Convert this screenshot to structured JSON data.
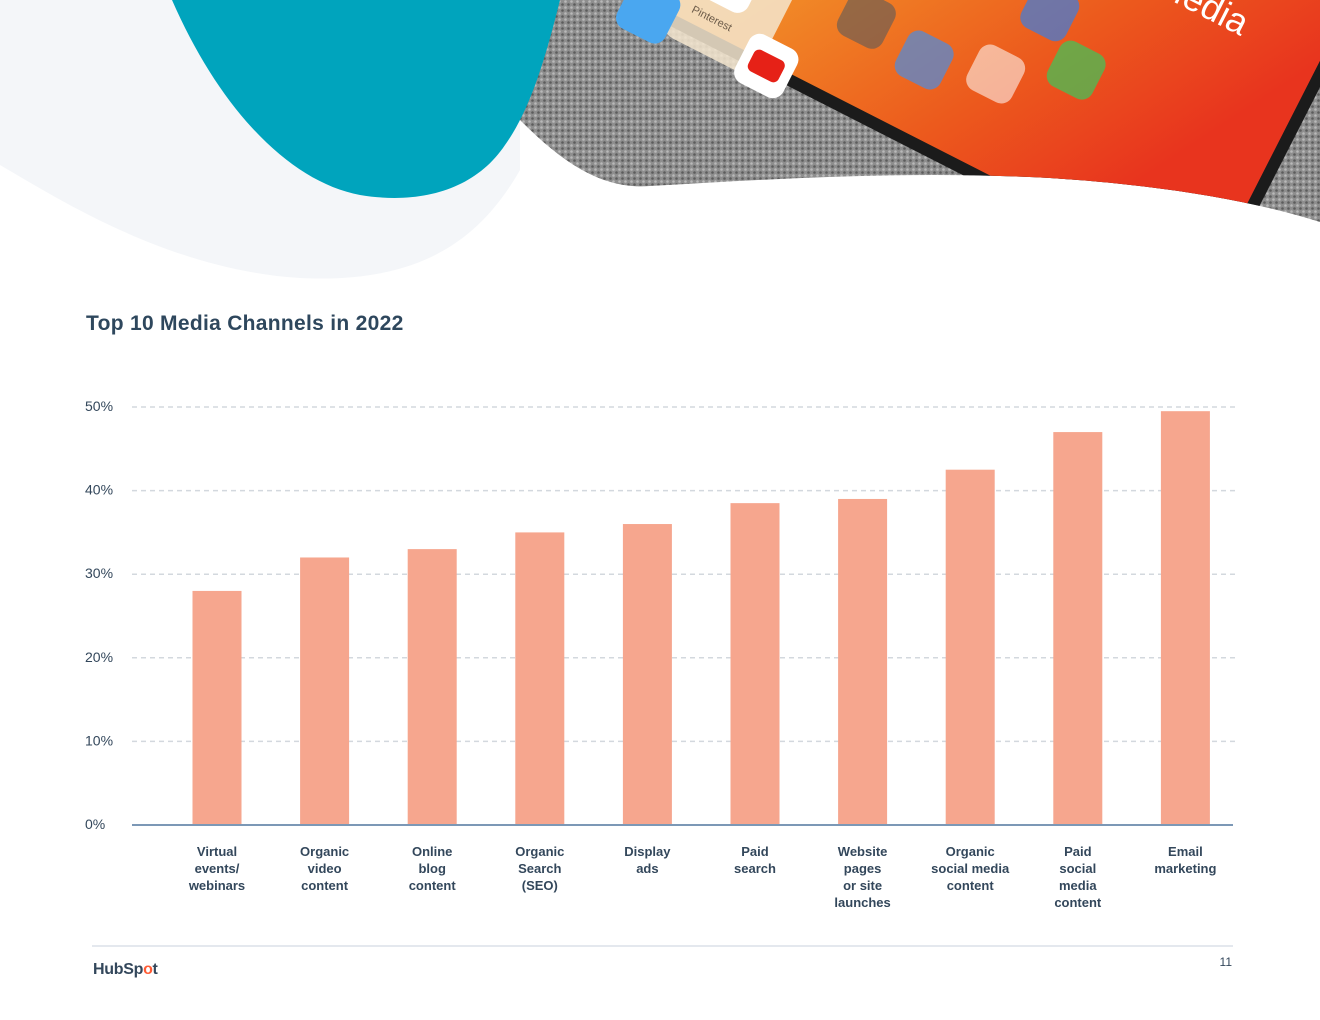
{
  "hero": {
    "screen_title": "Social Media",
    "app_label": "Pinterest",
    "colors": {
      "teal": "#00a4bd",
      "light_blob": "#f4f6f9",
      "fabric": "#8a8a8a",
      "screen_orange": "#f26a1e"
    }
  },
  "title": "Top 10 Media Channels in 2022",
  "chart_data": {
    "type": "bar",
    "title": "Top 10 Media Channels in 2022",
    "xlabel": "",
    "ylabel": "",
    "ylim": [
      0,
      50
    ],
    "yticks": [
      "0%",
      "10%",
      "20%",
      "30%",
      "40%",
      "50%"
    ],
    "grid": true,
    "bar_color": "#f6a68e",
    "categories": [
      "Virtual events/ webinars",
      "Organic video content",
      "Online blog content",
      "Organic Search (SEO)",
      "Display ads",
      "Paid search",
      "Website pages or site launches",
      "Organic social media content",
      "Paid social media content",
      "Email marketing"
    ],
    "category_lines": [
      [
        "Virtual",
        "events/",
        "webinars"
      ],
      [
        "Organic",
        "video",
        "content"
      ],
      [
        "Online",
        "blog",
        "content"
      ],
      [
        "Organic",
        "Search",
        "(SEO)"
      ],
      [
        "Display",
        "ads"
      ],
      [
        "Paid",
        "search"
      ],
      [
        "Website",
        "pages",
        "or site",
        "launches"
      ],
      [
        "Organic",
        "social media",
        "content"
      ],
      [
        "Paid",
        "social",
        "media",
        "content"
      ],
      [
        "Email",
        "marketing"
      ]
    ],
    "values": [
      28,
      32,
      33,
      35,
      36,
      38.5,
      39,
      42.5,
      47,
      49.5
    ]
  },
  "footer": {
    "logo_text_1": "HubSp",
    "logo_text_2": "o",
    "logo_text_3": "t",
    "page_number": "11"
  }
}
